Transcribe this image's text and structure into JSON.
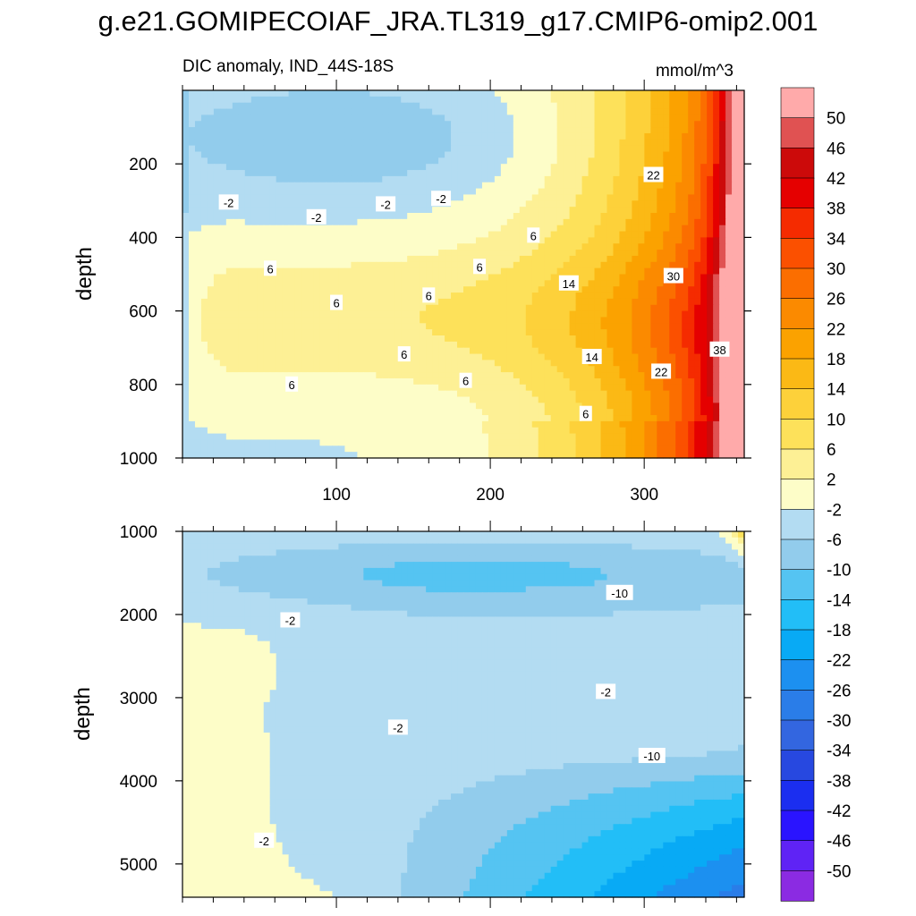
{
  "title": "g.e21.GOMIPECOIAF_JRA.TL319_g17.CMIP6-omip2.001",
  "colors": {
    "levels": [
      "#8b2be2",
      "#5f23f5",
      "#2a14ff",
      "#1b2ef0",
      "#2748e0",
      "#3366e0",
      "#2a7de8",
      "#1c90f0",
      "#08aaf5",
      "#22bef7",
      "#55c4f2",
      "#92ccec",
      "#b3dcf2",
      "#fdfdc8",
      "#fdf095",
      "#fde15a",
      "#fdd13a",
      "#fbb915",
      "#fba200",
      "#fb8a00",
      "#fb6e00",
      "#fb5000",
      "#f52b00",
      "#e50000",
      "#cc0a0a",
      "#e05252",
      "#ffaaaa"
    ]
  },
  "colorbar": {
    "labels": [
      "50",
      "46",
      "42",
      "38",
      "34",
      "30",
      "26",
      "22",
      "18",
      "14",
      "10",
      "6",
      "2",
      "-2",
      "-6",
      "-10",
      "-14",
      "-18",
      "-22",
      "-26",
      "-30",
      "-34",
      "-38",
      "-42",
      "-46",
      "-50"
    ]
  },
  "chart_data": [
    {
      "type": "heatmap",
      "panel": "upper",
      "title": "DIC anomaly, IND_44S-18S",
      "units": "mmol/m^3",
      "xlabel": "",
      "ylabel": "depth",
      "xlim": [
        0,
        365
      ],
      "ylim": [
        0,
        1000
      ],
      "y_inverted": true,
      "xticks": [
        "100",
        "200",
        "300"
      ],
      "yticks": [
        "200",
        "400",
        "600",
        "800",
        "1000"
      ],
      "contour_labels": [
        {
          "text": "-2",
          "x": 30,
          "y": 305
        },
        {
          "text": "-2",
          "x": 87,
          "y": 345
        },
        {
          "text": "-2",
          "x": 132,
          "y": 310
        },
        {
          "text": "-2",
          "x": 168,
          "y": 295
        },
        {
          "text": "6",
          "x": 57,
          "y": 485
        },
        {
          "text": "6",
          "x": 100,
          "y": 578
        },
        {
          "text": "6",
          "x": 160,
          "y": 558
        },
        {
          "text": "6",
          "x": 193,
          "y": 480
        },
        {
          "text": "6",
          "x": 228,
          "y": 395
        },
        {
          "text": "6",
          "x": 144,
          "y": 718
        },
        {
          "text": "6",
          "x": 71,
          "y": 800
        },
        {
          "text": "6",
          "x": 184,
          "y": 790
        },
        {
          "text": "6",
          "x": 262,
          "y": 880
        },
        {
          "text": "14",
          "x": 251,
          "y": 525
        },
        {
          "text": "14",
          "x": 266,
          "y": 725
        },
        {
          "text": "22",
          "x": 306,
          "y": 230
        },
        {
          "text": "22",
          "x": 311,
          "y": 765
        },
        {
          "text": "30",
          "x": 319,
          "y": 505
        },
        {
          "text": "38",
          "x": 349,
          "y": 705
        }
      ]
    },
    {
      "type": "heatmap",
      "panel": "lower",
      "title": "",
      "xlabel": "",
      "ylabel": "depth",
      "xlim": [
        0,
        365
      ],
      "ylim": [
        1000,
        5400
      ],
      "y_inverted": true,
      "yticks": [
        "1000",
        "2000",
        "3000",
        "4000",
        "5000"
      ],
      "contour_labels": [
        {
          "text": "-10",
          "x": 284,
          "y": 1740
        },
        {
          "text": "-2",
          "x": 70,
          "y": 2070
        },
        {
          "text": "-2",
          "x": 275,
          "y": 2930
        },
        {
          "text": "-2",
          "x": 140,
          "y": 3360
        },
        {
          "text": "-10",
          "x": 305,
          "y": 3700
        },
        {
          "text": "-2",
          "x": 53,
          "y": 4720
        }
      ]
    }
  ]
}
